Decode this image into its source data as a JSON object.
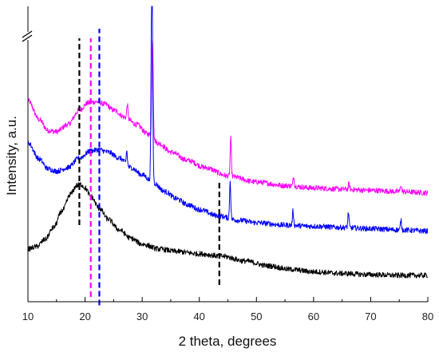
{
  "chart_data": {
    "type": "line",
    "title": "",
    "xlabel": "2 theta, degrees",
    "ylabel": "Intensity, a.u.",
    "xlim": [
      10,
      80
    ],
    "x_ticks": [
      "10",
      "20",
      "30",
      "40",
      "50",
      "60",
      "70",
      "80"
    ],
    "y_ticks": [],
    "grid": false,
    "legend": "none",
    "y_axis_break": true,
    "series": [
      {
        "color": "#ff00ff",
        "keypoints": [
          [
            10,
            0.74
          ],
          [
            12,
            0.66
          ],
          [
            13.5,
            0.615
          ],
          [
            15,
            0.61
          ],
          [
            17,
            0.64
          ],
          [
            19,
            0.7
          ],
          [
            20.5,
            0.73
          ],
          [
            22,
            0.735
          ],
          [
            23.5,
            0.725
          ],
          [
            25,
            0.7
          ],
          [
            27,
            0.67
          ],
          [
            29,
            0.64
          ],
          [
            31,
            0.6
          ],
          [
            33,
            0.56
          ],
          [
            35,
            0.525
          ],
          [
            38,
            0.49
          ],
          [
            41,
            0.46
          ],
          [
            45,
            0.425
          ],
          [
            50,
            0.4
          ],
          [
            55,
            0.385
          ],
          [
            60,
            0.375
          ],
          [
            65,
            0.37
          ],
          [
            70,
            0.365
          ],
          [
            75,
            0.36
          ],
          [
            80,
            0.355
          ]
        ],
        "peaks": [
          [
            27.4,
            0.06,
            0.1
          ],
          [
            31.8,
            0.42,
            0.12
          ],
          [
            45.5,
            0.16,
            0.1
          ],
          [
            56.5,
            0.04,
            0.1
          ],
          [
            66.2,
            0.025,
            0.1
          ],
          [
            75.3,
            0.03,
            0.1
          ]
        ]
      },
      {
        "color": "#0000ff",
        "keypoints": [
          [
            10,
            0.565
          ],
          [
            12,
            0.495
          ],
          [
            13.5,
            0.455
          ],
          [
            15,
            0.445
          ],
          [
            17,
            0.46
          ],
          [
            19,
            0.5
          ],
          [
            21,
            0.53
          ],
          [
            22.5,
            0.535
          ],
          [
            24,
            0.525
          ],
          [
            26,
            0.5
          ],
          [
            28,
            0.46
          ],
          [
            30,
            0.43
          ],
          [
            32,
            0.395
          ],
          [
            34,
            0.36
          ],
          [
            36,
            0.33
          ],
          [
            38,
            0.305
          ],
          [
            40,
            0.285
          ],
          [
            43,
            0.26
          ],
          [
            47,
            0.24
          ],
          [
            50,
            0.23
          ],
          [
            55,
            0.22
          ],
          [
            60,
            0.215
          ],
          [
            65,
            0.21
          ],
          [
            70,
            0.205
          ],
          [
            75,
            0.2
          ],
          [
            80,
            0.195
          ]
        ],
        "peaks": [
          [
            27.3,
            0.06,
            0.1
          ],
          [
            31.7,
            0.9,
            0.13
          ],
          [
            45.4,
            0.16,
            0.1
          ],
          [
            56.4,
            0.06,
            0.1
          ],
          [
            66.1,
            0.065,
            0.1
          ],
          [
            75.3,
            0.04,
            0.1
          ]
        ]
      },
      {
        "color": "#000000",
        "keypoints": [
          [
            10,
            0.12
          ],
          [
            11.5,
            0.13
          ],
          [
            13,
            0.16
          ],
          [
            14.5,
            0.21
          ],
          [
            16,
            0.28
          ],
          [
            17.5,
            0.35
          ],
          [
            18.5,
            0.385
          ],
          [
            19.3,
            0.39
          ],
          [
            20,
            0.375
          ],
          [
            21,
            0.34
          ],
          [
            22.5,
            0.29
          ],
          [
            24,
            0.245
          ],
          [
            26,
            0.2
          ],
          [
            28,
            0.165
          ],
          [
            30,
            0.14
          ],
          [
            33,
            0.12
          ],
          [
            36,
            0.11
          ],
          [
            40,
            0.1
          ],
          [
            44,
            0.09
          ],
          [
            48,
            0.07
          ],
          [
            52,
            0.05
          ],
          [
            56,
            0.035
          ],
          [
            60,
            0.025
          ],
          [
            65,
            0.018
          ],
          [
            70,
            0.013
          ],
          [
            75,
            0.01
          ],
          [
            80,
            0.01
          ]
        ],
        "peaks": []
      }
    ],
    "reference_lines": [
      {
        "x": 19.0,
        "color": "#000000",
        "y_from": 0.22,
        "y_to": 1.0
      },
      {
        "x": 21.0,
        "color": "#ff00ff",
        "y_from": -0.08,
        "y_to": 1.0
      },
      {
        "x": 22.5,
        "color": "#0000ff",
        "y_from": -0.115,
        "y_to": 1.04
      },
      {
        "x": 43.5,
        "color": "#000000",
        "y_from": -0.03,
        "y_to": 0.4
      }
    ]
  }
}
